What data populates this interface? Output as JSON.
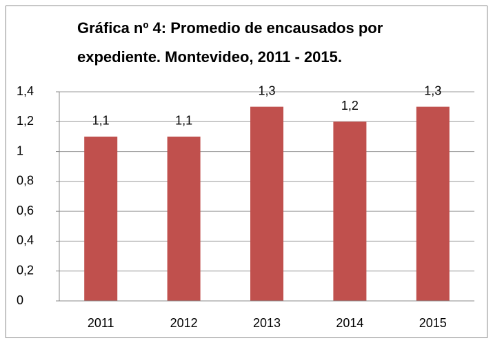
{
  "chart_data": {
    "type": "bar",
    "title": "Gráfica nº 4: Promedio de encausados por expediente. Montevideo, 2011 - 2015.",
    "categories": [
      "2011",
      "2012",
      "2013",
      "2014",
      "2015"
    ],
    "values": [
      1.1,
      1.1,
      1.3,
      1.2,
      1.3
    ],
    "value_labels": [
      "1,1",
      "1,1",
      "1,3",
      "1,2",
      "1,3"
    ],
    "color": "#c0504d",
    "ylim": [
      0,
      1.4
    ],
    "yticks": [
      0,
      {
        "value": 0.2,
        "label": "0,2"
      },
      {
        "value": 0.4,
        "label": "0,4"
      },
      {
        "value": 0.6,
        "label": "0,6"
      },
      {
        "value": 0.8,
        "label": "0,8"
      },
      1,
      {
        "value": 1.2,
        "label": "1,2"
      },
      {
        "value": 1.4,
        "label": "1,4"
      }
    ],
    "grid": true
  }
}
